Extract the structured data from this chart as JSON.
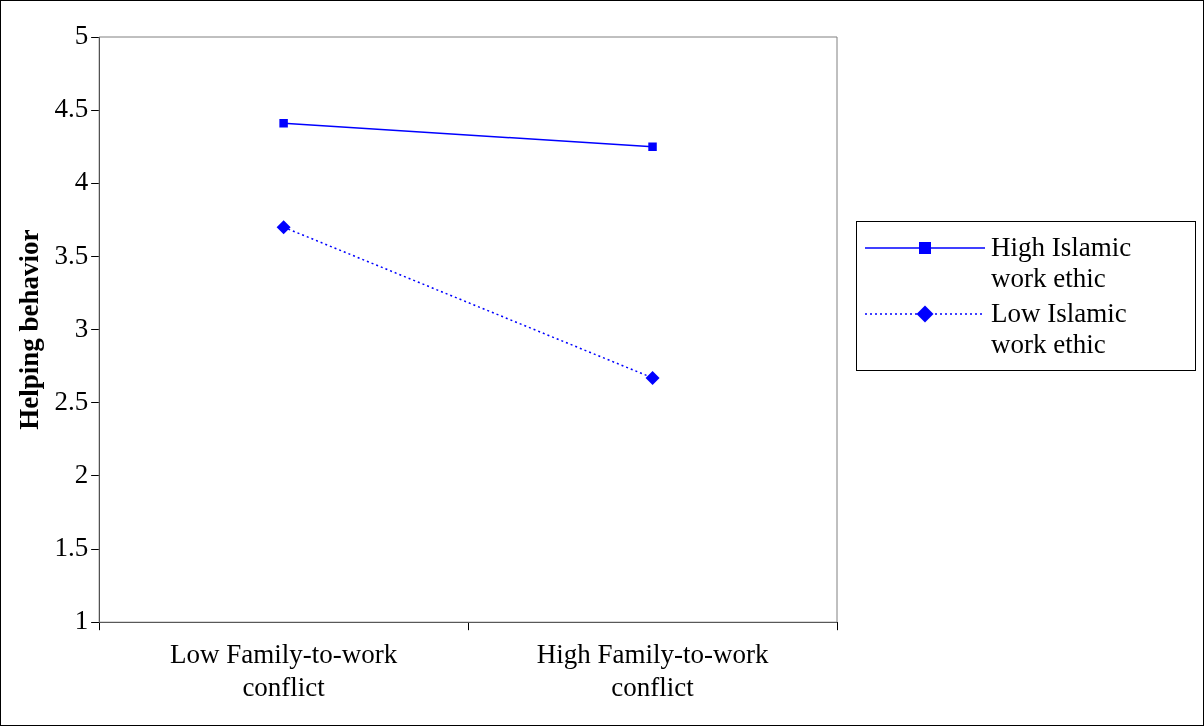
{
  "chart_data": {
    "type": "line",
    "ylabel": "Helping behavior",
    "categories": [
      "Low Family-to-work conflict",
      "High Family-to-work conflict"
    ],
    "series": [
      {
        "name": "High Islamic work ethic",
        "color": "#0000ff",
        "values": [
          4.41,
          4.25
        ],
        "marker": "square",
        "line_style": "solid"
      },
      {
        "name": "Low Islamic work ethic",
        "color": "#0000ff",
        "values": [
          3.7,
          2.67
        ],
        "marker": "diamond",
        "line_style": "dotted"
      }
    ],
    "ylim": [
      1,
      5
    ],
    "yticks": [
      1,
      1.5,
      2,
      2.5,
      3,
      3.5,
      4,
      4.5,
      5
    ],
    "grid": false,
    "legend": "right"
  }
}
